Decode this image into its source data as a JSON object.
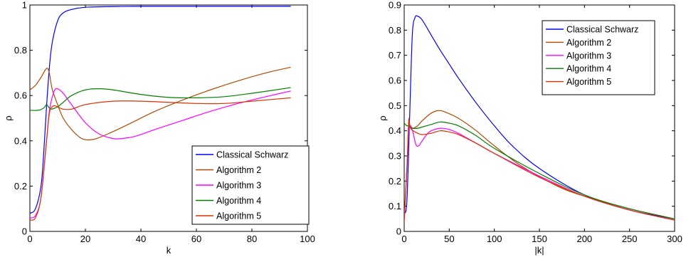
{
  "chart_data": [
    {
      "type": "line",
      "xlabel": "k",
      "ylabel": "ρ",
      "xlim": [
        0,
        100
      ],
      "ylim": [
        0,
        1
      ],
      "x_ticks": [
        "0",
        "20",
        "40",
        "60",
        "80",
        "100"
      ],
      "y_ticks": [
        "0",
        "0.2",
        "0.4",
        "0.6",
        "0.8",
        "1"
      ],
      "legend_position": "bottom-right",
      "series": [
        {
          "name": "Classical Schwarz",
          "color": "#0000ff",
          "x": [
            0,
            2,
            4,
            5,
            6,
            7,
            8,
            10,
            12,
            15,
            20,
            30,
            40,
            60,
            80,
            94
          ],
          "y": [
            0.08,
            0.1,
            0.2,
            0.35,
            0.55,
            0.72,
            0.83,
            0.93,
            0.965,
            0.98,
            0.99,
            0.993,
            0.994,
            0.994,
            0.994,
            0.994
          ]
        },
        {
          "name": "Algorithm 2",
          "color": "#b04a00",
          "x": [
            0,
            2,
            4,
            6,
            7,
            8,
            10,
            12,
            15,
            18,
            20,
            22,
            24,
            28,
            35,
            45,
            55,
            65,
            75,
            85,
            94
          ],
          "y": [
            0.625,
            0.645,
            0.68,
            0.72,
            0.7,
            0.63,
            0.56,
            0.5,
            0.45,
            0.415,
            0.405,
            0.405,
            0.41,
            0.43,
            0.47,
            0.53,
            0.58,
            0.625,
            0.665,
            0.7,
            0.725
          ]
        },
        {
          "name": "Algorithm 3",
          "color": "#ff00ff",
          "x": [
            0,
            2,
            4,
            6,
            7,
            8,
            9,
            10,
            12,
            15,
            20,
            25,
            30,
            33,
            38,
            45,
            55,
            65,
            75,
            85,
            94
          ],
          "y": [
            0.06,
            0.07,
            0.15,
            0.4,
            0.53,
            0.59,
            0.625,
            0.63,
            0.61,
            0.56,
            0.48,
            0.43,
            0.41,
            0.41,
            0.42,
            0.45,
            0.49,
            0.53,
            0.565,
            0.595,
            0.62
          ]
        },
        {
          "name": "Algorithm 4",
          "color": "#008000",
          "x": [
            0,
            3,
            5,
            6,
            7,
            8,
            9,
            10,
            12,
            15,
            20,
            25,
            30,
            40,
            50,
            60,
            70,
            80,
            94
          ],
          "y": [
            0.535,
            0.535,
            0.545,
            0.56,
            0.545,
            0.54,
            0.545,
            0.55,
            0.57,
            0.6,
            0.625,
            0.63,
            0.625,
            0.605,
            0.592,
            0.59,
            0.595,
            0.61,
            0.635
          ]
        },
        {
          "name": "Algorithm 5",
          "color": "#e03000",
          "x": [
            0,
            2,
            4,
            6,
            7,
            8,
            9,
            10,
            12,
            15,
            20,
            30,
            40,
            50,
            60,
            70,
            80,
            94
          ],
          "y": [
            0.05,
            0.06,
            0.15,
            0.4,
            0.52,
            0.55,
            0.555,
            0.55,
            0.54,
            0.54,
            0.56,
            0.575,
            0.575,
            0.57,
            0.565,
            0.565,
            0.575,
            0.59
          ]
        }
      ]
    },
    {
      "type": "line",
      "xlabel": "|k|",
      "ylabel": "ρ",
      "xlim": [
        0,
        300
      ],
      "ylim": [
        0,
        0.9
      ],
      "x_ticks": [
        "0",
        "50",
        "100",
        "150",
        "200",
        "250",
        "300"
      ],
      "y_ticks": [
        "0",
        "0.1",
        "0.2",
        "0.3",
        "0.4",
        "0.5",
        "0.6",
        "0.7",
        "0.8",
        "0.9"
      ],
      "legend_position": "top-right",
      "series": [
        {
          "name": "Classical Schwarz",
          "color": "#0000ff",
          "x": [
            0,
            3,
            6,
            9,
            12,
            15,
            20,
            30,
            40,
            50,
            60,
            80,
            100,
            120,
            150,
            200,
            250,
            300
          ],
          "y": [
            0.07,
            0.12,
            0.45,
            0.78,
            0.85,
            0.855,
            0.84,
            0.78,
            0.72,
            0.665,
            0.61,
            0.51,
            0.42,
            0.34,
            0.25,
            0.145,
            0.085,
            0.05
          ]
        },
        {
          "name": "Algorithm 2",
          "color": "#b04a00",
          "x": [
            0,
            3,
            5,
            6,
            8,
            10,
            15,
            20,
            30,
            38,
            45,
            60,
            80,
            100,
            130,
            170,
            200,
            250,
            300
          ],
          "y": [
            0.05,
            0.25,
            0.44,
            0.42,
            0.41,
            0.41,
            0.42,
            0.44,
            0.47,
            0.48,
            0.475,
            0.45,
            0.4,
            0.34,
            0.26,
            0.18,
            0.14,
            0.09,
            0.05
          ]
        },
        {
          "name": "Algorithm 3",
          "color": "#ff00ff",
          "x": [
            0,
            3,
            5,
            7,
            10,
            13,
            16,
            20,
            25,
            30,
            40,
            50,
            60,
            80,
            100,
            150,
            200,
            250,
            300
          ],
          "y": [
            0.04,
            0.25,
            0.39,
            0.42,
            0.39,
            0.345,
            0.34,
            0.36,
            0.385,
            0.4,
            0.41,
            0.405,
            0.39,
            0.35,
            0.31,
            0.22,
            0.14,
            0.085,
            0.045
          ]
        },
        {
          "name": "Algorithm 4",
          "color": "#008000",
          "x": [
            0,
            3,
            5,
            7,
            10,
            15,
            20,
            30,
            40,
            50,
            60,
            80,
            100,
            150,
            200,
            250,
            300
          ],
          "y": [
            0.43,
            0.42,
            0.42,
            0.415,
            0.41,
            0.41,
            0.415,
            0.425,
            0.435,
            0.43,
            0.42,
            0.38,
            0.33,
            0.23,
            0.145,
            0.09,
            0.05
          ]
        },
        {
          "name": "Algorithm 5",
          "color": "#e03000",
          "x": [
            0,
            3,
            5,
            7,
            10,
            15,
            20,
            30,
            40,
            50,
            60,
            80,
            100,
            150,
            200,
            250,
            300
          ],
          "y": [
            0.04,
            0.25,
            0.43,
            0.41,
            0.4,
            0.39,
            0.385,
            0.39,
            0.4,
            0.395,
            0.385,
            0.35,
            0.31,
            0.215,
            0.14,
            0.085,
            0.045
          ]
        }
      ]
    }
  ]
}
